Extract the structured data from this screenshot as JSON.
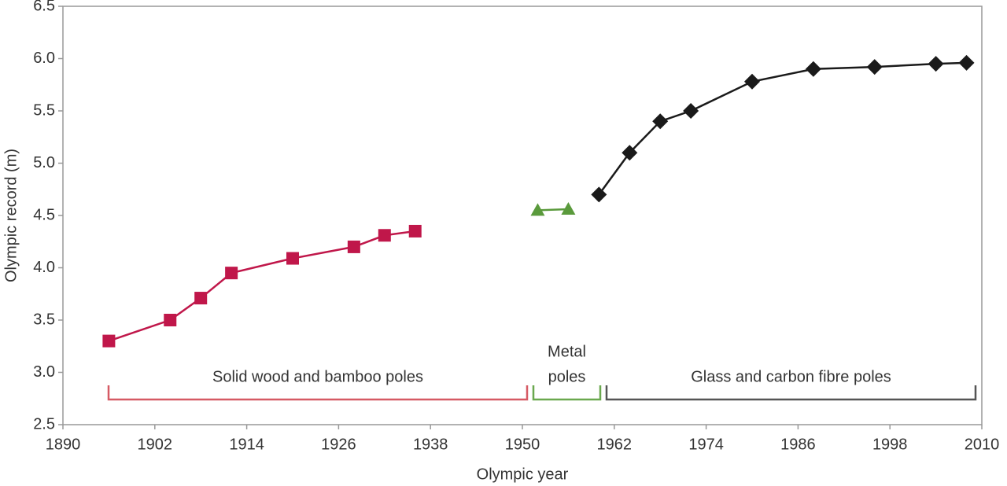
{
  "chart_data": {
    "type": "line",
    "x_label": "Olympic year",
    "y_label": "Olympic record (m)",
    "x": [
      1896,
      1904,
      1908,
      1912,
      1920,
      1928,
      1932,
      1936,
      1952,
      1956,
      1960,
      1964,
      1968,
      1972,
      1980,
      1988,
      1996,
      2004,
      2008
    ],
    "series": [
      {
        "name": "Solid wood and bamboo poles",
        "color": "#c0174a",
        "marker": "square",
        "values": [
          3.3,
          3.5,
          3.71,
          3.95,
          4.09,
          4.2,
          4.31,
          4.35,
          null,
          null,
          null,
          null,
          null,
          null,
          null,
          null,
          null,
          null,
          null
        ]
      },
      {
        "name": "Metal poles",
        "color": "#5a9a3c",
        "marker": "triangle",
        "values": [
          null,
          null,
          null,
          null,
          null,
          null,
          null,
          null,
          4.55,
          4.56,
          null,
          null,
          null,
          null,
          null,
          null,
          null,
          null,
          null
        ]
      },
      {
        "name": "Glass and carbon fibre poles",
        "color": "#1a1a1a",
        "marker": "diamond",
        "values": [
          null,
          null,
          null,
          null,
          null,
          null,
          null,
          null,
          null,
          null,
          4.7,
          5.1,
          5.4,
          5.5,
          5.78,
          5.9,
          5.92,
          5.95,
          5.96
        ]
      }
    ],
    "annotations": [
      {
        "lines": [
          "Solid wood and bamboo poles"
        ],
        "color": "#d65a64"
      },
      {
        "lines": [
          "Metal",
          "poles"
        ],
        "color": "#6aa84f"
      },
      {
        "lines": [
          "Glass and carbon fibre poles"
        ],
        "color": "#555555"
      }
    ],
    "xlim": [
      1890,
      2010
    ],
    "xticks": [
      1890,
      1902,
      1914,
      1926,
      1938,
      1950,
      1962,
      1974,
      1986,
      1998,
      2010
    ],
    "ylim": [
      2.5,
      6.5
    ],
    "yticks": [
      2.5,
      {
        "value": 3,
        "label": "3.0"
      },
      3.5,
      {
        "value": 4,
        "label": "4.0"
      },
      4.5,
      {
        "value": 5,
        "label": "5.0"
      },
      5.5,
      {
        "value": 6,
        "label": "6.0"
      },
      6.5
    ],
    "grid": false
  }
}
